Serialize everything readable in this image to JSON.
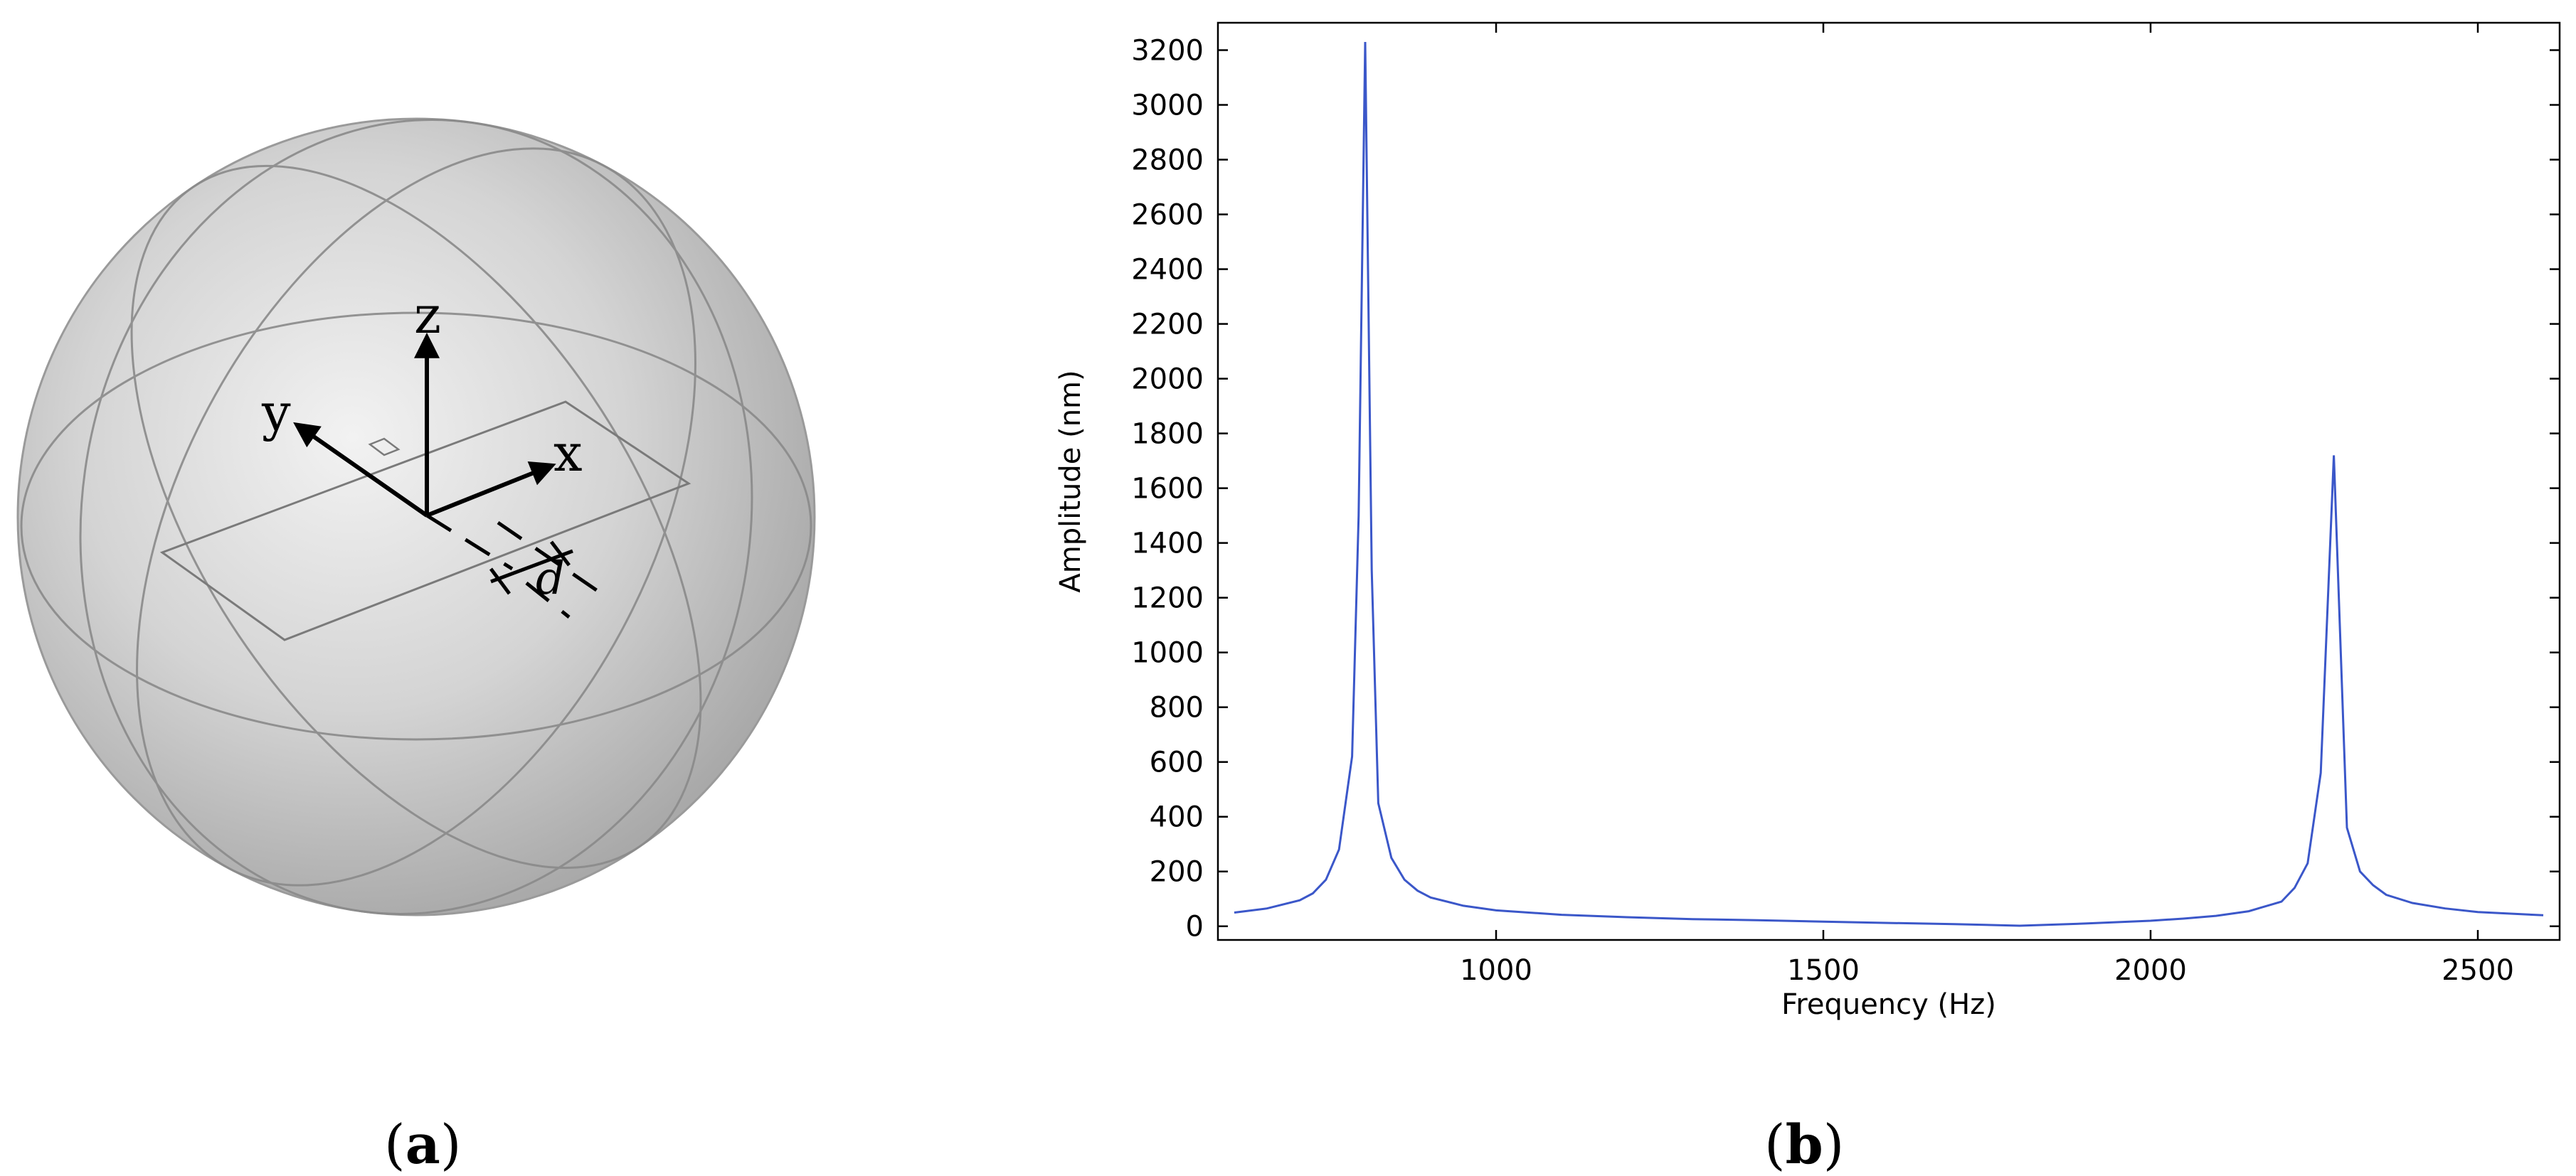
{
  "panel_a": {
    "label": "a",
    "axis_labels": {
      "z": "z",
      "y": "y",
      "x": "x",
      "d": "d"
    }
  },
  "panel_b": {
    "label": "b"
  },
  "chart_data": {
    "type": "line",
    "title": "",
    "xlabel": "Frequency (Hz)",
    "ylabel": "Amplitude (nm)",
    "xlim": [
      575,
      2625
    ],
    "ylim": [
      -50,
      3300
    ],
    "xticks": [
      1000,
      1500,
      2000,
      2500
    ],
    "yticks": [
      0,
      200,
      400,
      600,
      800,
      1000,
      1200,
      1400,
      1600,
      1800,
      2000,
      2200,
      2400,
      2600,
      2800,
      3000,
      3200
    ],
    "grid": false,
    "line_color": "#3b57c9",
    "series": [
      {
        "name": "",
        "x": [
          600,
          650,
          700,
          720,
          740,
          760,
          780,
          790,
          800,
          810,
          820,
          840,
          860,
          880,
          900,
          950,
          1000,
          1100,
          1200,
          1300,
          1400,
          1500,
          1600,
          1700,
          1800,
          1900,
          2000,
          2050,
          2100,
          2150,
          2200,
          2220,
          2240,
          2260,
          2280,
          2300,
          2320,
          2340,
          2360,
          2400,
          2450,
          2500,
          2600
        ],
        "y": [
          50,
          65,
          95,
          120,
          170,
          280,
          620,
          1500,
          3230,
          1300,
          450,
          250,
          170,
          130,
          105,
          75,
          58,
          42,
          33,
          26,
          22,
          17,
          12,
          8,
          2,
          10,
          20,
          28,
          38,
          55,
          90,
          140,
          230,
          560,
          1720,
          360,
          200,
          150,
          115,
          85,
          65,
          52,
          40
        ]
      }
    ]
  }
}
